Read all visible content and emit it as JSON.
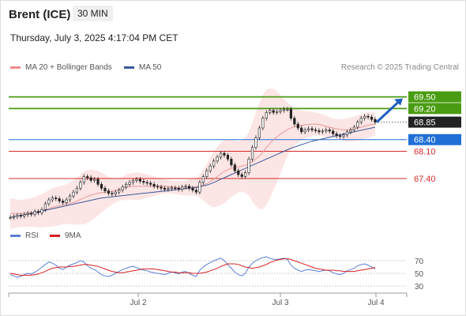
{
  "header": {
    "title": "Brent (ICE)",
    "timeframe": "30 MIN",
    "datetime": "Thursday, July 3, 2025 4:17:04 PM CET"
  },
  "legend_main": [
    {
      "label": "MA 20 + Bollinger Bands",
      "color": "#f08c8c"
    },
    {
      "label": "MA 50",
      "color": "#3a5a9a"
    }
  ],
  "legend_rsi": [
    {
      "label": "RSI",
      "color": "#5b7fd6"
    },
    {
      "label": "9MA",
      "color": "#d62020"
    }
  ],
  "credit": "Research © 2025 Trading Central",
  "colors": {
    "resistance": "#4a9c12",
    "support": "#d62c2c",
    "pivot": "#1f6fd6",
    "current": "#222222",
    "candle": "#222222",
    "band_fill": "#fbe0e0",
    "ma20": "#e89a9a",
    "ma50": "#3a5a9a",
    "arrow": "#1f5fbf"
  },
  "chart_data": [
    {
      "type": "candlestick",
      "title": "Brent (ICE) 30 MIN",
      "x_ticks": [
        "Jul 2",
        "Jul 3",
        "Jul 4"
      ],
      "ylim": [
        66.2,
        70.0
      ],
      "levels": [
        {
          "value": 69.5,
          "label": "69.50",
          "kind": "resistance"
        },
        {
          "value": 69.2,
          "label": "69.20",
          "kind": "resistance"
        },
        {
          "value": 68.85,
          "label": "68.85",
          "kind": "current"
        },
        {
          "value": 68.4,
          "label": "68.40",
          "kind": "pivot"
        },
        {
          "value": 68.1,
          "label": "68.10",
          "kind": "support"
        },
        {
          "value": 67.4,
          "label": "67.40",
          "kind": "support"
        }
      ],
      "close": [
        66.4,
        66.42,
        66.45,
        66.43,
        66.47,
        66.5,
        66.48,
        66.55,
        66.52,
        66.6,
        66.75,
        66.85,
        66.9,
        66.88,
        66.82,
        66.78,
        66.85,
        66.95,
        67.05,
        67.15,
        67.3,
        67.45,
        67.42,
        67.35,
        67.38,
        67.25,
        67.15,
        67.08,
        67.02,
        67.0,
        67.05,
        67.1,
        67.18,
        67.25,
        67.3,
        67.35,
        67.38,
        67.33,
        67.3,
        67.28,
        67.25,
        67.2,
        67.18,
        67.15,
        67.12,
        67.14,
        67.16,
        67.15,
        67.12,
        67.18,
        67.2,
        67.15,
        67.1,
        67.05,
        67.3,
        67.45,
        67.6,
        67.72,
        67.85,
        67.95,
        68.05,
        68.0,
        67.9,
        67.75,
        67.6,
        67.5,
        67.45,
        67.55,
        67.9,
        68.2,
        68.45,
        68.7,
        68.95,
        69.1,
        69.15,
        69.1,
        69.12,
        69.15,
        69.18,
        69.18,
        68.95,
        68.8,
        68.7,
        68.6,
        68.65,
        68.68,
        68.65,
        68.63,
        68.6,
        68.62,
        68.65,
        68.62,
        68.55,
        68.5,
        68.48,
        68.52,
        68.6,
        68.65,
        68.72,
        68.85,
        68.95,
        69.0,
        68.98,
        68.92,
        68.85
      ],
      "ma20": [
        66.5,
        66.5,
        66.5,
        66.5,
        66.51,
        66.52,
        66.53,
        66.54,
        66.55,
        66.57,
        66.6,
        66.63,
        66.66,
        66.68,
        66.7,
        66.72,
        66.74,
        66.76,
        66.78,
        66.82,
        66.86,
        66.9,
        66.94,
        66.97,
        67.0,
        67.02,
        67.04,
        67.05,
        67.06,
        67.07,
        67.09,
        67.12,
        67.15,
        67.17,
        67.19,
        67.2,
        67.2,
        67.2,
        67.2,
        67.2,
        67.2,
        67.2,
        67.2,
        67.2,
        67.2,
        67.19,
        67.18,
        67.17,
        67.16,
        67.15,
        67.16,
        67.17,
        67.18,
        67.19,
        67.2,
        67.23,
        67.27,
        67.32,
        67.38,
        67.45,
        67.52,
        67.58,
        67.63,
        67.66,
        67.68,
        67.7,
        67.72,
        67.74,
        67.78,
        67.83,
        67.9,
        67.98,
        68.08,
        68.2,
        68.3,
        68.4,
        68.47,
        68.54,
        68.6,
        68.66,
        68.7,
        68.73,
        68.75,
        68.77,
        68.78,
        68.79,
        68.8,
        68.8,
        68.79,
        68.77,
        68.74,
        68.72,
        68.7,
        68.68,
        68.66,
        68.65,
        68.65,
        68.66,
        68.68,
        68.7,
        68.72,
        68.75,
        68.77,
        68.79,
        68.8
      ],
      "bb_upper": [
        66.9,
        66.88,
        66.86,
        66.85,
        66.86,
        66.88,
        66.9,
        66.93,
        66.96,
        67.0,
        67.05,
        67.1,
        67.15,
        67.18,
        67.2,
        67.22,
        67.25,
        67.3,
        67.35,
        67.42,
        67.5,
        67.58,
        67.62,
        67.63,
        67.62,
        67.6,
        67.55,
        67.5,
        67.45,
        67.42,
        67.4,
        67.42,
        67.45,
        67.5,
        67.52,
        67.55,
        67.55,
        67.55,
        67.52,
        67.5,
        67.48,
        67.45,
        67.42,
        67.4,
        67.38,
        67.36,
        67.35,
        67.34,
        67.33,
        67.33,
        67.35,
        67.38,
        67.4,
        67.42,
        67.5,
        67.62,
        67.78,
        67.95,
        68.1,
        68.22,
        68.32,
        68.4,
        68.42,
        68.4,
        68.38,
        68.36,
        68.38,
        68.45,
        68.6,
        68.85,
        69.1,
        69.35,
        69.55,
        69.68,
        69.72,
        69.7,
        69.65,
        69.55,
        69.45,
        69.35,
        69.28,
        69.22,
        69.18,
        69.15,
        69.13,
        69.12,
        69.11,
        69.1,
        69.08,
        69.05,
        69.02,
        68.98,
        68.95,
        68.93,
        68.92,
        68.93,
        68.95,
        68.97,
        69.0,
        69.02,
        69.05,
        69.08,
        69.1,
        69.1,
        69.1
      ],
      "bb_lower": [
        66.1,
        66.12,
        66.14,
        66.15,
        66.16,
        66.16,
        66.16,
        66.15,
        66.14,
        66.14,
        66.15,
        66.16,
        66.17,
        66.18,
        66.2,
        66.22,
        66.23,
        66.22,
        66.21,
        66.22,
        66.22,
        66.22,
        66.26,
        66.31,
        66.38,
        66.44,
        66.53,
        66.6,
        66.67,
        66.72,
        66.78,
        66.82,
        66.85,
        66.84,
        66.86,
        66.85,
        66.85,
        66.85,
        66.88,
        66.9,
        66.92,
        66.95,
        66.98,
        67.0,
        67.02,
        67.02,
        67.01,
        67.0,
        66.99,
        66.97,
        66.97,
        66.96,
        66.96,
        66.96,
        66.9,
        66.84,
        66.76,
        66.69,
        66.66,
        66.68,
        66.72,
        66.76,
        66.84,
        66.92,
        66.98,
        67.04,
        67.06,
        67.03,
        66.96,
        66.81,
        66.7,
        66.61,
        66.61,
        66.72,
        66.88,
        67.1,
        67.29,
        67.53,
        67.75,
        67.97,
        68.12,
        68.24,
        68.32,
        68.39,
        68.43,
        68.46,
        68.49,
        68.5,
        68.5,
        68.49,
        68.46,
        68.46,
        68.45,
        68.43,
        68.4,
        68.37,
        68.35,
        68.35,
        68.36,
        68.38,
        68.39,
        68.42,
        68.44,
        68.48,
        68.5
      ],
      "ma50": [
        66.4,
        66.42,
        66.44,
        66.45,
        66.47,
        66.49,
        66.5,
        66.52,
        66.54,
        66.56,
        66.58,
        66.6,
        66.62,
        66.64,
        66.66,
        66.68,
        66.7,
        66.72,
        66.74,
        66.76,
        66.78,
        66.8,
        66.82,
        66.84,
        66.86,
        66.88,
        66.9,
        66.91,
        66.92,
        66.93,
        66.94,
        66.95,
        66.96,
        66.97,
        66.98,
        66.99,
        67.0,
        67.01,
        67.02,
        67.03,
        67.04,
        67.05,
        67.06,
        67.07,
        67.08,
        67.09,
        67.1,
        67.11,
        67.12,
        67.13,
        67.14,
        67.15,
        67.16,
        67.17,
        67.19,
        67.21,
        67.23,
        67.26,
        67.3,
        67.34,
        67.38,
        67.42,
        67.46,
        67.5,
        67.54,
        67.58,
        67.62,
        67.66,
        67.7,
        67.74,
        67.78,
        67.82,
        67.86,
        67.9,
        67.94,
        67.98,
        68.02,
        68.06,
        68.1,
        68.14,
        68.18,
        68.21,
        68.24,
        68.27,
        68.3,
        68.33,
        68.36,
        68.38,
        68.4,
        68.42,
        68.44,
        68.46,
        68.48,
        68.5,
        68.52,
        68.54,
        68.56,
        68.58,
        68.6,
        68.62,
        68.64,
        68.66,
        68.68,
        68.7,
        68.72
      ]
    },
    {
      "type": "line",
      "title": "RSI",
      "x_ticks": [
        "Jul 2",
        "Jul 3",
        "Jul 4"
      ],
      "y_ticks": [
        70,
        50,
        30
      ],
      "ylim": [
        25,
        80
      ],
      "series": [
        {
          "name": "RSI",
          "values": [
            48,
            46,
            44,
            45,
            48,
            50,
            49,
            52,
            55,
            60,
            64,
            68,
            66,
            63,
            58,
            56,
            60,
            63,
            65,
            67,
            70,
            68,
            62,
            58,
            56,
            52,
            48,
            46,
            45,
            47,
            50,
            53,
            56,
            58,
            60,
            61,
            59,
            57,
            55,
            54,
            52,
            51,
            50,
            49,
            48,
            50,
            52,
            51,
            49,
            52,
            53,
            50,
            47,
            45,
            55,
            60,
            64,
            67,
            70,
            72,
            74,
            70,
            64,
            58,
            52,
            48,
            46,
            50,
            60,
            66,
            70,
            73,
            75,
            76,
            74,
            72,
            72,
            73,
            74,
            72,
            63,
            58,
            55,
            53,
            55,
            56,
            55,
            54,
            53,
            54,
            55,
            54,
            51,
            49,
            48,
            50,
            54,
            56,
            58,
            62,
            64,
            65,
            63,
            60,
            57
          ]
        },
        {
          "name": "9MA",
          "values": [
            50,
            49,
            48,
            47,
            47,
            47,
            47,
            48,
            49,
            51,
            53,
            56,
            58,
            59,
            60,
            60,
            60,
            61,
            61,
            62,
            63,
            64,
            64,
            63,
            62,
            61,
            59,
            57,
            55,
            53,
            52,
            51,
            51,
            52,
            53,
            54,
            55,
            56,
            57,
            57,
            57,
            57,
            56,
            55,
            54,
            53,
            52,
            52,
            51,
            51,
            51,
            51,
            50,
            50,
            50,
            51,
            52,
            54,
            56,
            58,
            61,
            63,
            65,
            65,
            65,
            64,
            62,
            60,
            59,
            58,
            59,
            60,
            62,
            64,
            67,
            69,
            71,
            72,
            73,
            73,
            72,
            70,
            68,
            66,
            64,
            62,
            60,
            58,
            57,
            56,
            55,
            55,
            55,
            54,
            54,
            53,
            53,
            53,
            53,
            54,
            55,
            56,
            57,
            58,
            59
          ]
        }
      ]
    }
  ]
}
